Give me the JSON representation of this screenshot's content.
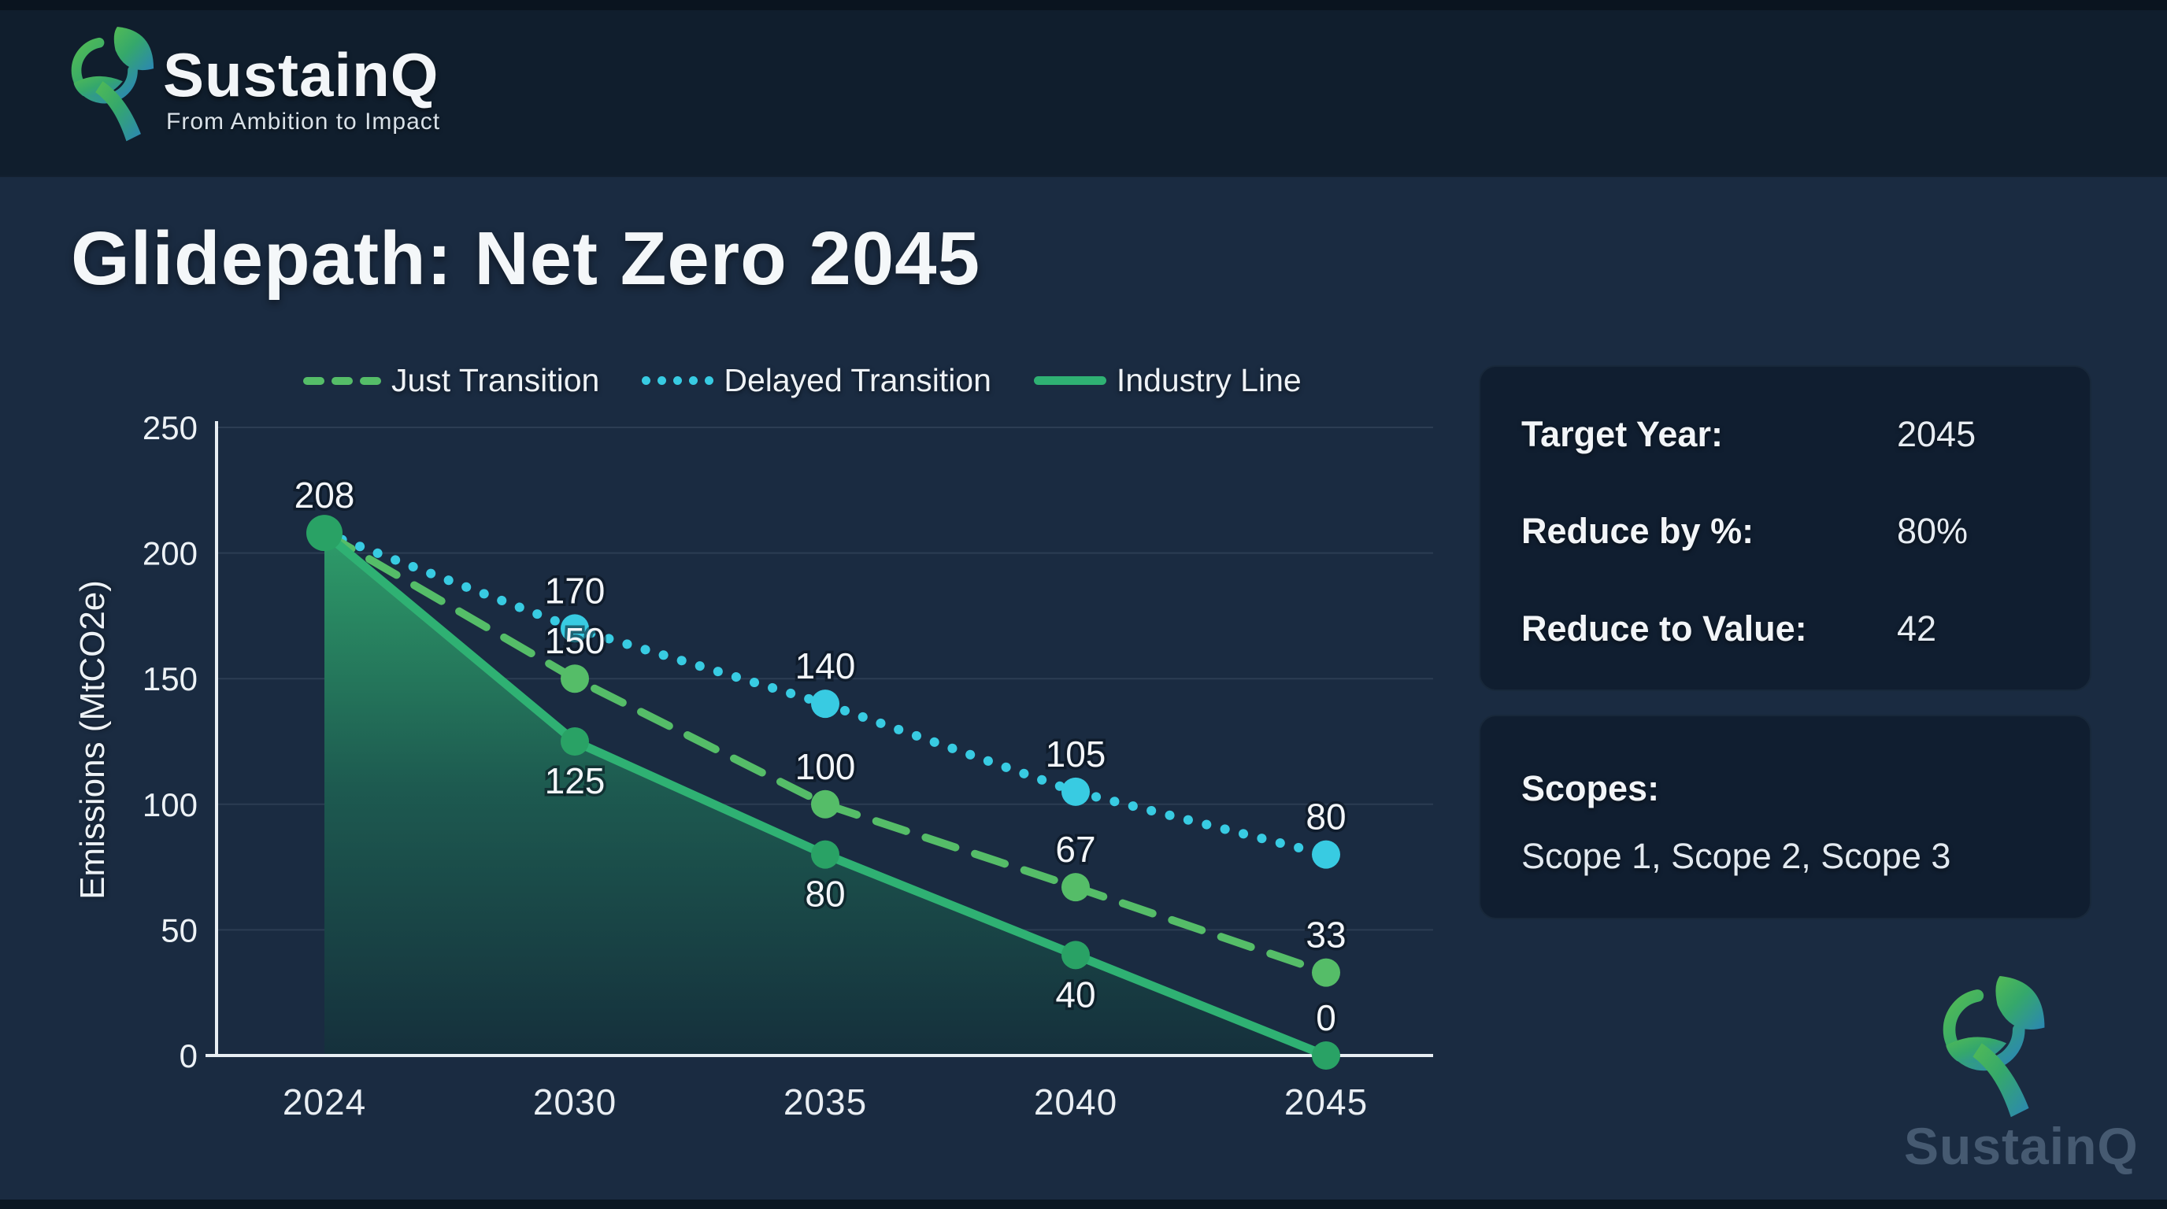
{
  "brand": {
    "name": "SustainQ",
    "tagline": "From Ambition to Impact"
  },
  "page": {
    "title": "Glidepath: Net Zero 2045"
  },
  "colors": {
    "background": "#1a2b41",
    "header_band": "#101e2d",
    "just_transition": "#55bd68",
    "delayed_transition": "#38cbe2",
    "industry_line": "#2fb173",
    "industry_marker": "#29a265",
    "axis": "#e8eef3"
  },
  "legend": [
    {
      "label": "Just Transition",
      "style": "dashed",
      "color": "#55bd68"
    },
    {
      "label": "Delayed Transition",
      "style": "dotted",
      "color": "#38cbe2"
    },
    {
      "label": "Industry Line",
      "style": "solid",
      "color": "#2fb173"
    }
  ],
  "chart_data": {
    "type": "line",
    "x_categories": [
      "2024",
      "2030",
      "2035",
      "2040",
      "2045"
    ],
    "ylabel": "Emissions (MtCO2e)",
    "xlabel": "",
    "ylim": [
      0,
      250
    ],
    "yticks": [
      0,
      50,
      100,
      150,
      200,
      250
    ],
    "grid": true,
    "legend_position": "top",
    "series": [
      {
        "name": "Delayed Transition",
        "style": "dotted",
        "color": "#38cbe2",
        "values": [
          208,
          170,
          140,
          105,
          80
        ],
        "labels": [
          "",
          "170",
          "140",
          "105",
          "80"
        ],
        "label_pos": [
          "none",
          "above",
          "above",
          "above",
          "above"
        ]
      },
      {
        "name": "Just Transition",
        "style": "dashed",
        "color": "#55bd68",
        "values": [
          208,
          150,
          100,
          67,
          33
        ],
        "labels": [
          "",
          "150",
          "100",
          "67",
          "33"
        ],
        "label_pos": [
          "none",
          "above",
          "above",
          "above",
          "above"
        ]
      },
      {
        "name": "Industry Line",
        "style": "solid",
        "color": "#2fb173",
        "marker_color": "#29a265",
        "area": true,
        "values": [
          208,
          125,
          80,
          40,
          0
        ],
        "labels": [
          "208",
          "125",
          "80",
          "40",
          "0"
        ],
        "label_pos": [
          "above",
          "below",
          "below",
          "below",
          "above"
        ]
      }
    ]
  },
  "summary_panel": {
    "rows": [
      {
        "label": "Target Year:",
        "value": "2045"
      },
      {
        "label": "Reduce by %:",
        "value": "80%"
      },
      {
        "label": "Reduce to Value:",
        "value": "42"
      }
    ]
  },
  "scopes_panel": {
    "label": "Scopes:",
    "value": "Scope 1, Scope 2, Scope 3"
  },
  "watermark": {
    "name": "SustainQ"
  }
}
